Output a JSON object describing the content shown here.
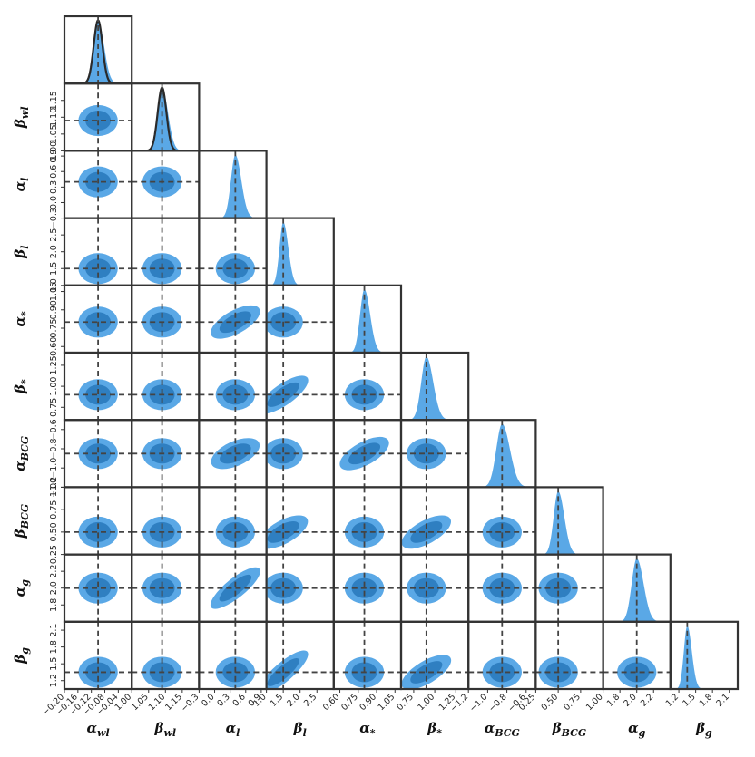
{
  "chart_data": {
    "type": "corner",
    "parameters": [
      {
        "name": "α_wl",
        "sym": "α",
        "sub": "wl",
        "truth": -0.1,
        "range": [
          -0.2,
          0.0
        ],
        "ticks": [
          -0.2,
          -0.16,
          -0.12,
          -0.08,
          -0.04
        ],
        "tick_labels": [
          "−0.20",
          "−0.16",
          "−0.12",
          "−0.08",
          "−0.04"
        ],
        "mean": -0.1,
        "sigma": 0.013
      },
      {
        "name": "β_wl",
        "sym": "β",
        "sub": "wl",
        "truth": 1.09,
        "range": [
          1.0,
          1.2
        ],
        "ticks": [
          1.0,
          1.05,
          1.1,
          1.15
        ],
        "tick_labels": [
          "1.00",
          "1.05",
          "1.10",
          "1.15"
        ],
        "mean": 1.09,
        "sigma": 0.013
      },
      {
        "name": "α_l",
        "sym": "α",
        "sub": "l",
        "truth": 0.4,
        "range": [
          -0.3,
          1.0
        ],
        "ticks": [
          -0.3,
          0.0,
          0.3,
          0.6,
          0.9
        ],
        "tick_labels": [
          "−0.3",
          "0.0",
          "0.3",
          "0.6",
          "0.9"
        ],
        "mean": 0.4,
        "sigma": 0.085
      },
      {
        "name": "β_l",
        "sym": "β",
        "sub": "l",
        "truth": 1.5,
        "range": [
          1.0,
          3.0
        ],
        "ticks": [
          1.0,
          1.5,
          2.0,
          2.5
        ],
        "tick_labels": [
          "1.0",
          "1.5",
          "2.0",
          "2.5"
        ],
        "mean": 1.5,
        "sigma": 0.11
      },
      {
        "name": "α_*",
        "sym": "α",
        "sub": "*",
        "truth": 0.8,
        "range": [
          0.55,
          1.1
        ],
        "ticks": [
          0.6,
          0.75,
          0.9,
          1.05
        ],
        "tick_labels": [
          "0.60",
          "0.75",
          "0.90",
          "1.05"
        ],
        "mean": 0.8,
        "sigma": 0.035
      },
      {
        "name": "β_*",
        "sym": "β",
        "sub": "*",
        "truth": 0.9,
        "range": [
          0.6,
          1.4
        ],
        "ticks": [
          0.75,
          1.0,
          1.25
        ],
        "tick_labels": [
          "0.75",
          "1.00",
          "1.25"
        ],
        "mean": 0.9,
        "sigma": 0.06
      },
      {
        "name": "α_BCG",
        "sym": "α",
        "sub": "BCG",
        "truth": -0.85,
        "range": [
          -1.2,
          -0.5
        ],
        "ticks": [
          -1.2,
          -1.0,
          -0.8,
          -0.6
        ],
        "tick_labels": [
          "−1.2",
          "−1.0",
          "−0.8",
          "−0.6"
        ],
        "mean": -0.85,
        "sigma": 0.06
      },
      {
        "name": "β_BCG",
        "sym": "β",
        "sub": "BCG",
        "truth": 0.5,
        "range": [
          0.25,
          1.0
        ],
        "ticks": [
          0.25,
          0.5,
          0.75,
          1.0
        ],
        "tick_labels": [
          "0.25",
          "0.50",
          "0.75",
          "1.00"
        ],
        "mean": 0.5,
        "sigma": 0.05
      },
      {
        "name": "α_g",
        "sym": "α",
        "sub": "g",
        "truth": 2.0,
        "range": [
          1.6,
          2.4
        ],
        "ticks": [
          1.8,
          2.0,
          2.2
        ],
        "tick_labels": [
          "1.8",
          "2.0",
          "2.2"
        ],
        "mean": 2.0,
        "sigma": 0.06
      },
      {
        "name": "β_g",
        "sym": "β",
        "sub": "g",
        "truth": 1.35,
        "range": [
          1.05,
          2.25
        ],
        "ticks": [
          1.2,
          1.5,
          1.8,
          2.1
        ],
        "tick_labels": [
          "1.2",
          "1.5",
          "1.8",
          "2.1"
        ],
        "mean": 1.35,
        "sigma": 0.06
      }
    ],
    "correlations": [
      {
        "row": 2,
        "col": 3,
        "rho": 0.0
      },
      {
        "row": 4,
        "col": 2,
        "rho": 0.55
      },
      {
        "row": 5,
        "col": 3,
        "rho": 0.7
      },
      {
        "row": 6,
        "col": 2,
        "rho": 0.45
      },
      {
        "row": 6,
        "col": 4,
        "rho": 0.55
      },
      {
        "row": 7,
        "col": 3,
        "rho": 0.55
      },
      {
        "row": 7,
        "col": 5,
        "rho": 0.55
      },
      {
        "row": 8,
        "col": 2,
        "rho": 0.8
      },
      {
        "row": 9,
        "col": 3,
        "rho": 0.85
      },
      {
        "row": 9,
        "col": 5,
        "rho": 0.6
      }
    ],
    "contour_levels": [
      "68%",
      "95%"
    ],
    "truth_lines": "dashed",
    "colors": {
      "fill_outer": "#5aa8e6",
      "fill_inner": "#2f7fc1",
      "frame": "#333333",
      "truth_line": "#444444",
      "true_curve": "#2a2a2a"
    }
  }
}
